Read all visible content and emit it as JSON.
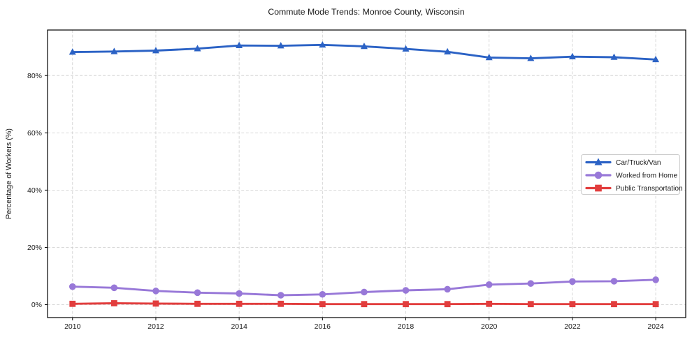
{
  "chart_data": {
    "type": "line",
    "title": "Commute Mode Trends: Monroe County, Wisconsin",
    "xlabel": "",
    "ylabel": "Percentage of Workers (%)",
    "x": [
      2010,
      2011,
      2012,
      2013,
      2014,
      2015,
      2016,
      2017,
      2018,
      2019,
      2020,
      2021,
      2022,
      2023,
      2024
    ],
    "x_tick_years": [
      2010,
      2012,
      2014,
      2016,
      2018,
      2020,
      2022,
      2024
    ],
    "x_tick_labels": [
      "2010",
      "2012",
      "2014",
      "2016",
      "2018",
      "2020",
      "2022",
      "2024"
    ],
    "y_ticks": [
      0,
      20,
      40,
      60,
      80
    ],
    "y_tick_suffix": "%",
    "xlim": [
      2009.4,
      2024.72
    ],
    "ylim": [
      -4.5,
      95.9
    ],
    "grid": true,
    "grid_style": "dashed",
    "legend_position": "center right",
    "series": [
      {
        "name": "Car/Truck/Van",
        "color": "#2b62c5",
        "marker": "triangle",
        "values": [
          88.2,
          88.4,
          88.7,
          89.4,
          90.5,
          90.4,
          90.7,
          90.2,
          89.3,
          88.3,
          86.3,
          86.0,
          86.6,
          86.4,
          85.6
        ]
      },
      {
        "name": "Worked from Home",
        "color": "#9878d8",
        "marker": "circle",
        "values": [
          6.3,
          5.9,
          4.8,
          4.2,
          3.9,
          3.3,
          3.6,
          4.4,
          5.0,
          5.4,
          7.0,
          7.4,
          8.1,
          8.2,
          8.7
        ]
      },
      {
        "name": "Public Transportation",
        "color": "#e23d3d",
        "marker": "square",
        "values": [
          0.3,
          0.5,
          0.4,
          0.3,
          0.3,
          0.3,
          0.2,
          0.2,
          0.2,
          0.2,
          0.3,
          0.2,
          0.2,
          0.2,
          0.2
        ]
      }
    ],
    "colors": {
      "grid": "#cccccc",
      "axis": "#000000",
      "tick_text": "#1a1a1a",
      "legend_border": "#cccccc",
      "background": "#ffffff"
    }
  }
}
